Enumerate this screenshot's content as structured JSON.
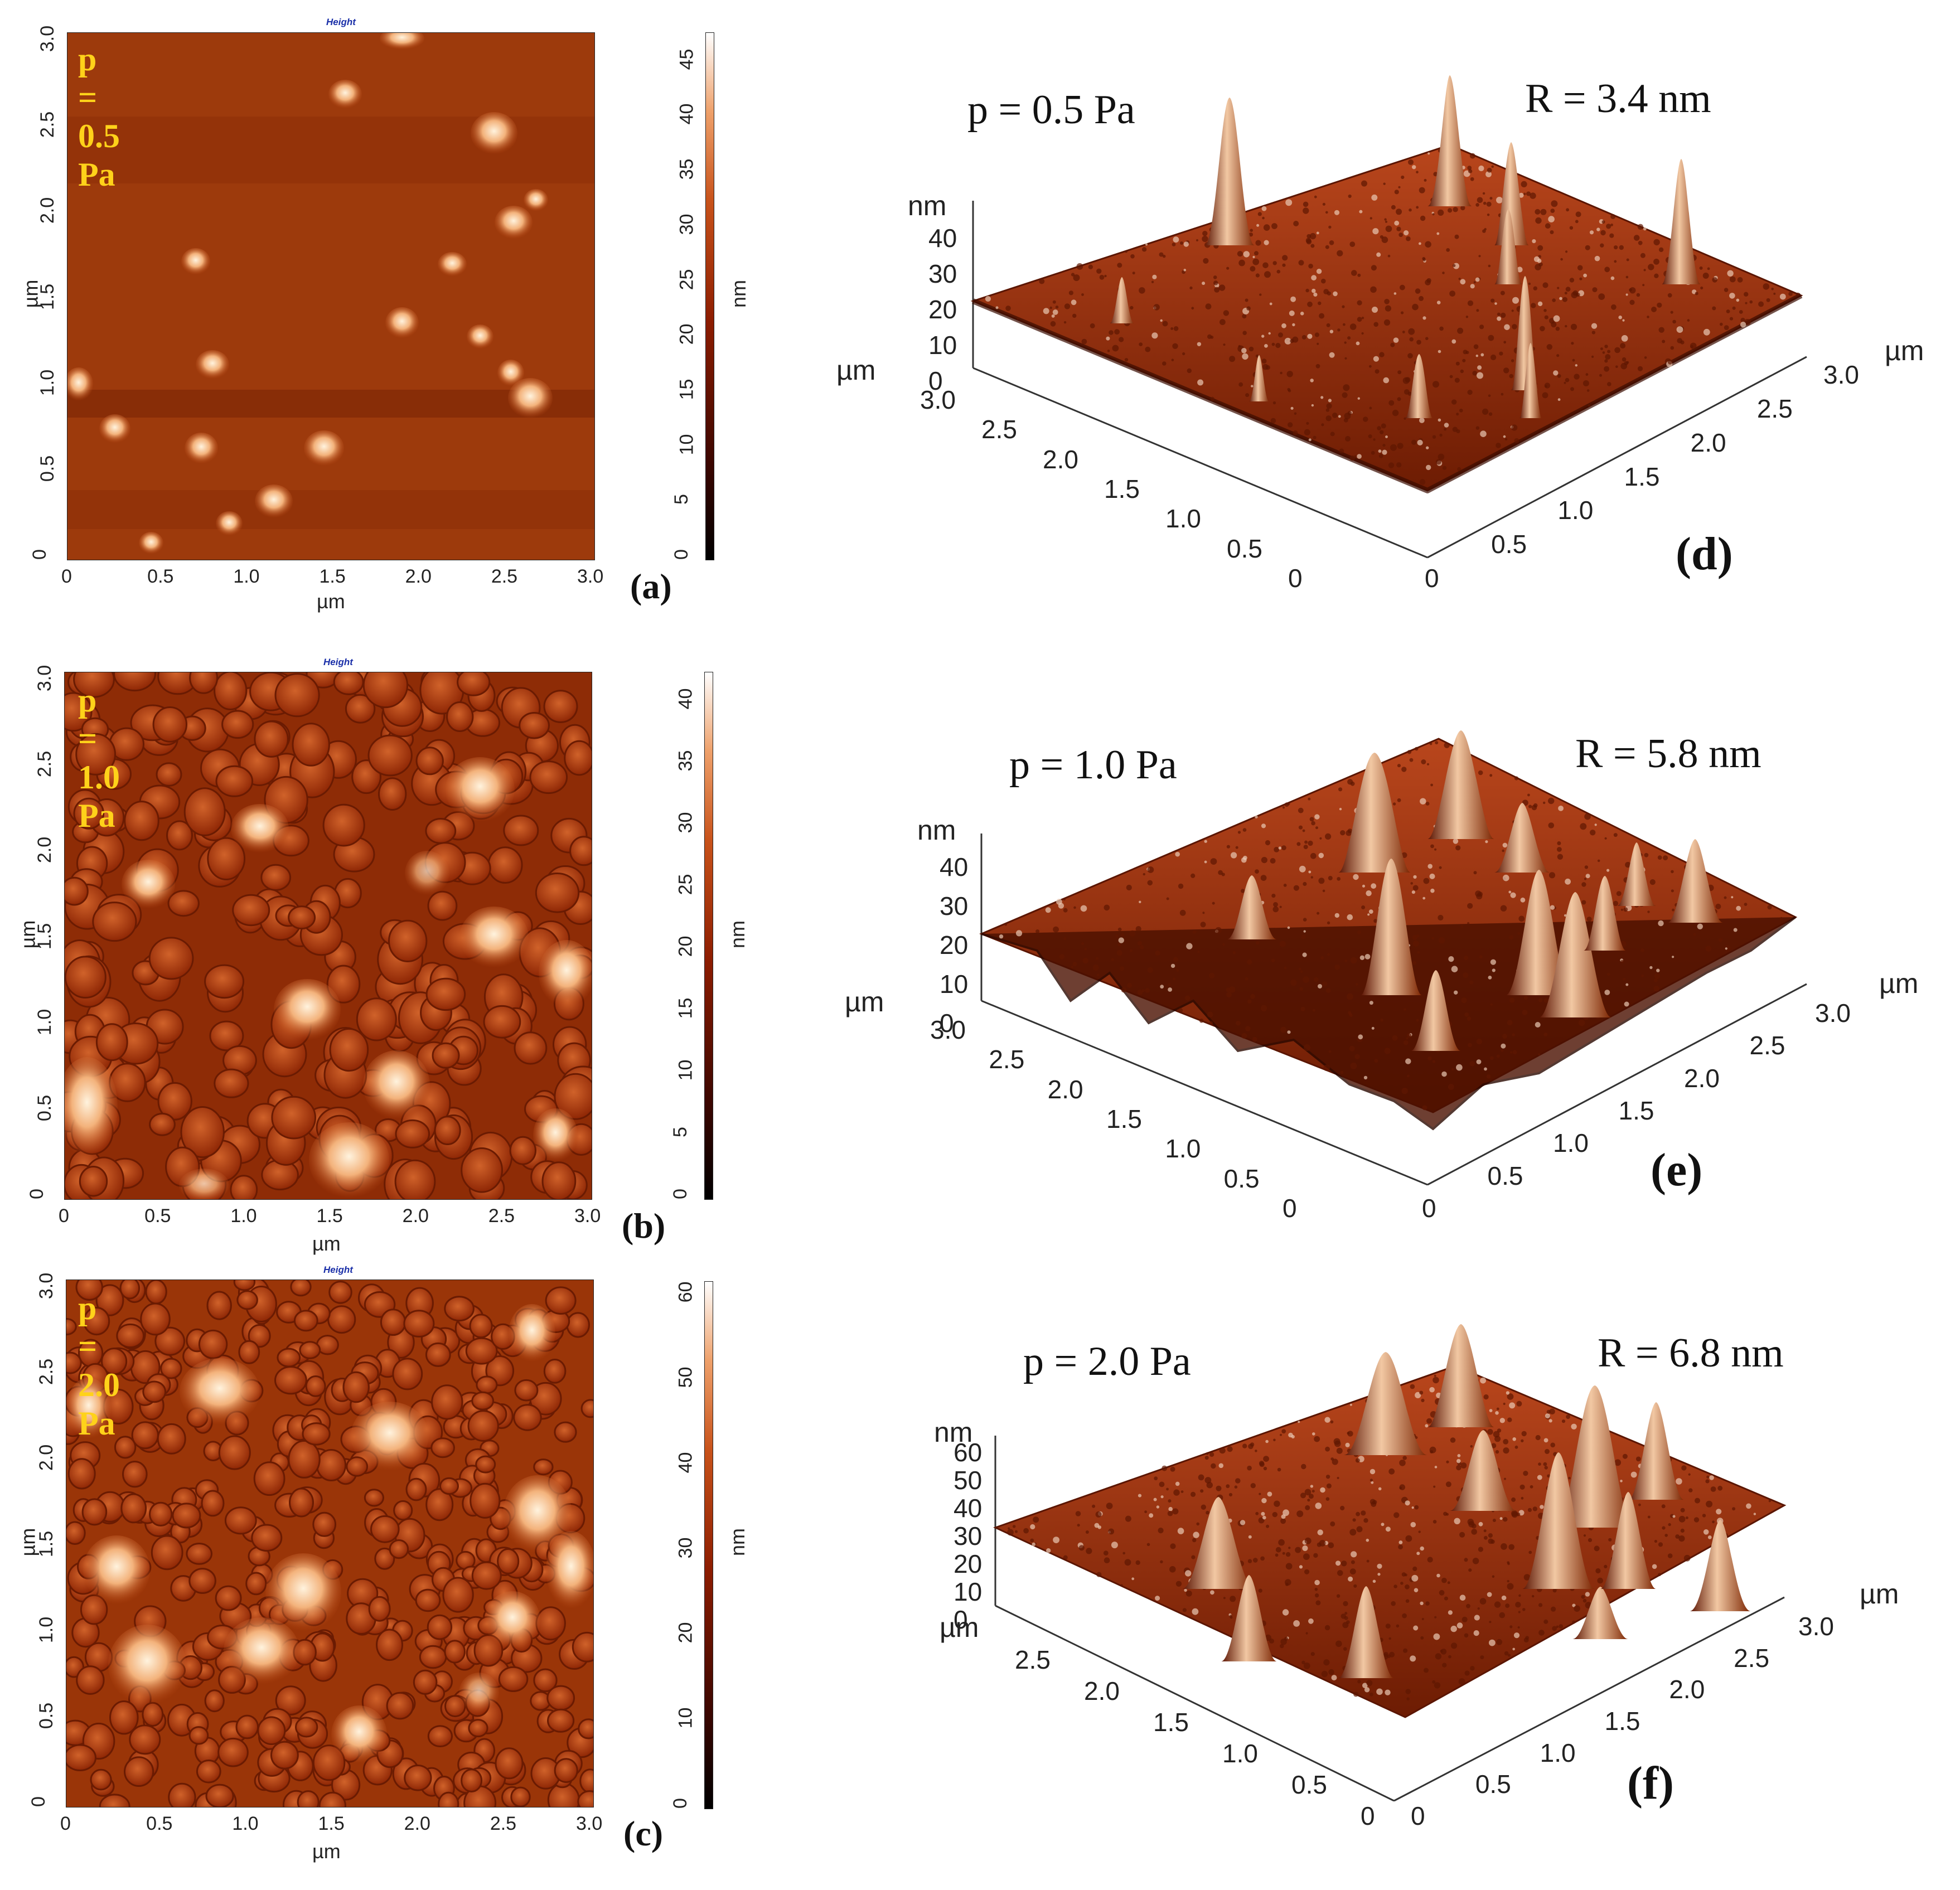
{
  "panels_2d": [
    {
      "letter": "(a)",
      "pressure": "p = 0.5 Pa",
      "height_label": "Height",
      "x_ticks": [
        "0",
        "0.5",
        "1.0",
        "1.5",
        "2.0",
        "2.5",
        "3.0"
      ],
      "y_ticks": [
        "0",
        "0.5",
        "1.0",
        "1.5",
        "2.0",
        "2.5",
        "3.0"
      ],
      "x_unit": "µm",
      "y_unit": "µm",
      "cbar_ticks": [
        "0",
        "5",
        "10",
        "15",
        "20",
        "25",
        "30",
        "35",
        "40",
        "45"
      ],
      "cbar_unit": "nm"
    },
    {
      "letter": "(b)",
      "pressure": "p = 1.0 Pa",
      "height_label": "Height",
      "x_ticks": [
        "0",
        "0.5",
        "1.0",
        "1.5",
        "2.0",
        "2.5",
        "3.0"
      ],
      "y_ticks": [
        "0",
        "0.5",
        "1.0",
        "1.5",
        "2.0",
        "2.5",
        "3.0"
      ],
      "x_unit": "µm",
      "y_unit": "µm",
      "cbar_ticks": [
        "0",
        "5",
        "10",
        "15",
        "20",
        "25",
        "30",
        "35",
        "40"
      ],
      "cbar_unit": "nm"
    },
    {
      "letter": "(c)",
      "pressure": "p = 2.0 Pa",
      "height_label": "Height",
      "x_ticks": [
        "0",
        "0.5",
        "1.0",
        "1.5",
        "2.0",
        "2.5",
        "3.0"
      ],
      "y_ticks": [
        "0",
        "0.5",
        "1.0",
        "1.5",
        "2.0",
        "2.5",
        "3.0"
      ],
      "x_unit": "µm",
      "y_unit": "µm",
      "cbar_ticks": [
        "0",
        "10",
        "20",
        "30",
        "40",
        "50",
        "60"
      ],
      "cbar_unit": "nm"
    }
  ],
  "panels_3d": [
    {
      "letter": "(d)",
      "pressure": "p = 0.5 Pa",
      "roughness": "R = 3.4 nm",
      "z_unit": "nm",
      "z_ticks": [
        "40",
        "30",
        "20",
        "10",
        "0"
      ],
      "left_unit": "µm",
      "left_ticks": [
        "3.0",
        "2.5",
        "2.0",
        "1.5",
        "1.0",
        "0.5",
        "0"
      ],
      "right_unit": "µm",
      "right_ticks": [
        "0",
        "0.5",
        "1.0",
        "1.5",
        "2.0",
        "2.5",
        "3.0"
      ]
    },
    {
      "letter": "(e)",
      "pressure": "p = 1.0 Pa",
      "roughness": "R = 5.8 nm",
      "z_unit": "nm",
      "z_ticks": [
        "40",
        "30",
        "20",
        "10",
        "0"
      ],
      "left_unit": "µm",
      "left_ticks": [
        "3.0",
        "2.5",
        "2.0",
        "1.5",
        "1.0",
        "0.5",
        "0"
      ],
      "right_unit": "µm",
      "right_ticks": [
        "0",
        "0.5",
        "1.0",
        "1.5",
        "2.0",
        "2.5",
        "3.0"
      ]
    },
    {
      "letter": "(f)",
      "pressure": "p = 2.0 Pa",
      "roughness": "R = 6.8 nm",
      "z_unit": "nm",
      "z_ticks": [
        "60",
        "50",
        "40",
        "30",
        "20",
        "10",
        "0"
      ],
      "left_unit": "µm",
      "left_ticks": [
        "2.5",
        "2.0",
        "1.5",
        "1.0",
        "0.5",
        "0"
      ],
      "right_unit": "µm",
      "right_ticks": [
        "0",
        "0.5",
        "1.0",
        "1.5",
        "2.0",
        "2.5",
        "3.0"
      ]
    }
  ]
}
